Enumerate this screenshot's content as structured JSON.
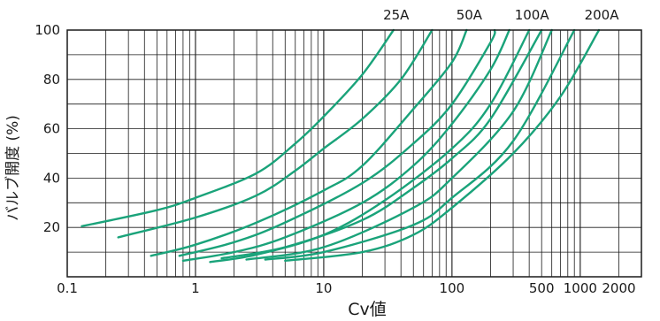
{
  "chart_data": {
    "type": "line",
    "title": "",
    "xlabel": "Cv値",
    "ylabel": "バルブ開度 (%)",
    "x_scale": "log",
    "xlim": [
      0.1,
      3000
    ],
    "ylim": [
      0,
      100
    ],
    "x_ticks": [
      {
        "value": 0.1,
        "label": "0.1"
      },
      {
        "value": 1,
        "label": "1"
      },
      {
        "value": 10,
        "label": "10"
      },
      {
        "value": 100,
        "label": "100"
      },
      {
        "value": 500,
        "label": "500"
      },
      {
        "value": 1000,
        "label": "1000"
      },
      {
        "value": 2000,
        "label": "2000"
      }
    ],
    "y_ticks": [
      {
        "value": 20,
        "label": "20"
      },
      {
        "value": 40,
        "label": "40"
      },
      {
        "value": 60,
        "label": "60"
      },
      {
        "value": 80,
        "label": "80"
      },
      {
        "value": 100,
        "label": "100"
      }
    ],
    "grid": true,
    "line_color": "#1aa37a",
    "series": [
      {
        "name": "25A",
        "points": [
          [
            0.13,
            20.5
          ],
          [
            0.5,
            27
          ],
          [
            1,
            32
          ],
          [
            3,
            42
          ],
          [
            6,
            54
          ],
          [
            10,
            65
          ],
          [
            20,
            82
          ],
          [
            35,
            100
          ]
        ]
      },
      {
        "name": "",
        "points": [
          [
            0.25,
            16
          ],
          [
            1,
            24
          ],
          [
            3,
            33
          ],
          [
            6,
            43
          ],
          [
            10,
            52
          ],
          [
            20,
            64
          ],
          [
            40,
            80
          ],
          [
            70,
            100
          ]
        ]
      },
      {
        "name": "50A",
        "points": [
          [
            0.45,
            8.5
          ],
          [
            1,
            13
          ],
          [
            3,
            22
          ],
          [
            10,
            35
          ],
          [
            20,
            45
          ],
          [
            50,
            68
          ],
          [
            100,
            87
          ],
          [
            130,
            100
          ]
        ]
      },
      {
        "name": "",
        "points": [
          [
            0.75,
            8.5
          ],
          [
            2,
            14
          ],
          [
            5,
            22
          ],
          [
            20,
            38
          ],
          [
            50,
            54
          ],
          [
            100,
            70
          ],
          [
            200,
            95
          ],
          [
            215,
            100
          ]
        ]
      },
      {
        "name": "",
        "points": [
          [
            0.8,
            6.5
          ],
          [
            2,
            10
          ],
          [
            5,
            16
          ],
          [
            20,
            30
          ],
          [
            50,
            45
          ],
          [
            100,
            62
          ],
          [
            200,
            84
          ],
          [
            280,
            100
          ]
        ]
      },
      {
        "name": "100A",
        "points": [
          [
            1.3,
            6
          ],
          [
            3,
            9
          ],
          [
            10,
            17
          ],
          [
            30,
            31
          ],
          [
            100,
            52
          ],
          [
            200,
            70
          ],
          [
            400,
            100
          ]
        ]
      },
      {
        "name": "",
        "points": [
          [
            1.6,
            7.5
          ],
          [
            5,
            12
          ],
          [
            20,
            23
          ],
          [
            50,
            36
          ],
          [
            100,
            48
          ],
          [
            200,
            64
          ],
          [
            500,
            100
          ]
        ]
      },
      {
        "name": "",
        "points": [
          [
            2.5,
            7
          ],
          [
            10,
            12
          ],
          [
            50,
            28
          ],
          [
            100,
            40
          ],
          [
            300,
            67
          ],
          [
            600,
            100
          ]
        ]
      },
      {
        "name": "",
        "points": [
          [
            3.5,
            7
          ],
          [
            10,
            10
          ],
          [
            50,
            21
          ],
          [
            100,
            32
          ],
          [
            300,
            55
          ],
          [
            900,
            100
          ]
        ]
      },
      {
        "name": "200A",
        "points": [
          [
            5,
            6.5
          ],
          [
            20,
            10
          ],
          [
            50,
            17
          ],
          [
            100,
            28
          ],
          [
            300,
            50
          ],
          [
            700,
            73
          ],
          [
            1400,
            100
          ]
        ]
      }
    ]
  }
}
